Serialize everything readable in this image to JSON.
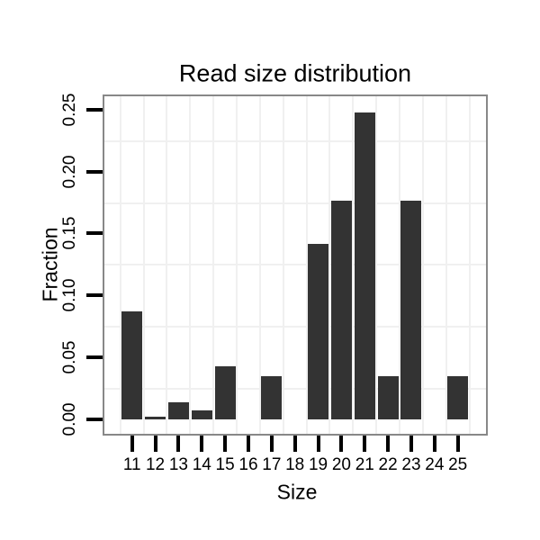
{
  "chart_data": {
    "type": "bar",
    "title": "Read size distribution",
    "xlabel": "Size",
    "ylabel": "Fraction",
    "categories": [
      "11",
      "12",
      "13",
      "14",
      "15",
      "16",
      "17",
      "18",
      "19",
      "20",
      "21",
      "22",
      "23",
      "24",
      "25"
    ],
    "values": [
      0.087,
      0.002,
      0.014,
      0.007,
      0.043,
      0,
      0.035,
      0,
      0.142,
      0.177,
      0.248,
      0.035,
      0.177,
      0,
      0.035
    ],
    "yticks": [
      0,
      0.05,
      0.1,
      0.15,
      0.2,
      0.25
    ],
    "ytick_labels": [
      "0.00",
      "0.05",
      "0.10",
      "0.15",
      "0.20",
      "0.25"
    ],
    "ylim": [
      0,
      0.261
    ],
    "minor_hgridlines": [
      0.025,
      0.075,
      0.125,
      0.175,
      0.225
    ],
    "grid": "light minor horizontal lines + vertical lines at category boundaries",
    "legend": "none",
    "colors": {
      "bar_fill": "#333333",
      "gridline": "#f0f0f0",
      "plot_border": "#888888",
      "tick": "#000000",
      "text": "#000000",
      "background": "#ffffff"
    }
  }
}
